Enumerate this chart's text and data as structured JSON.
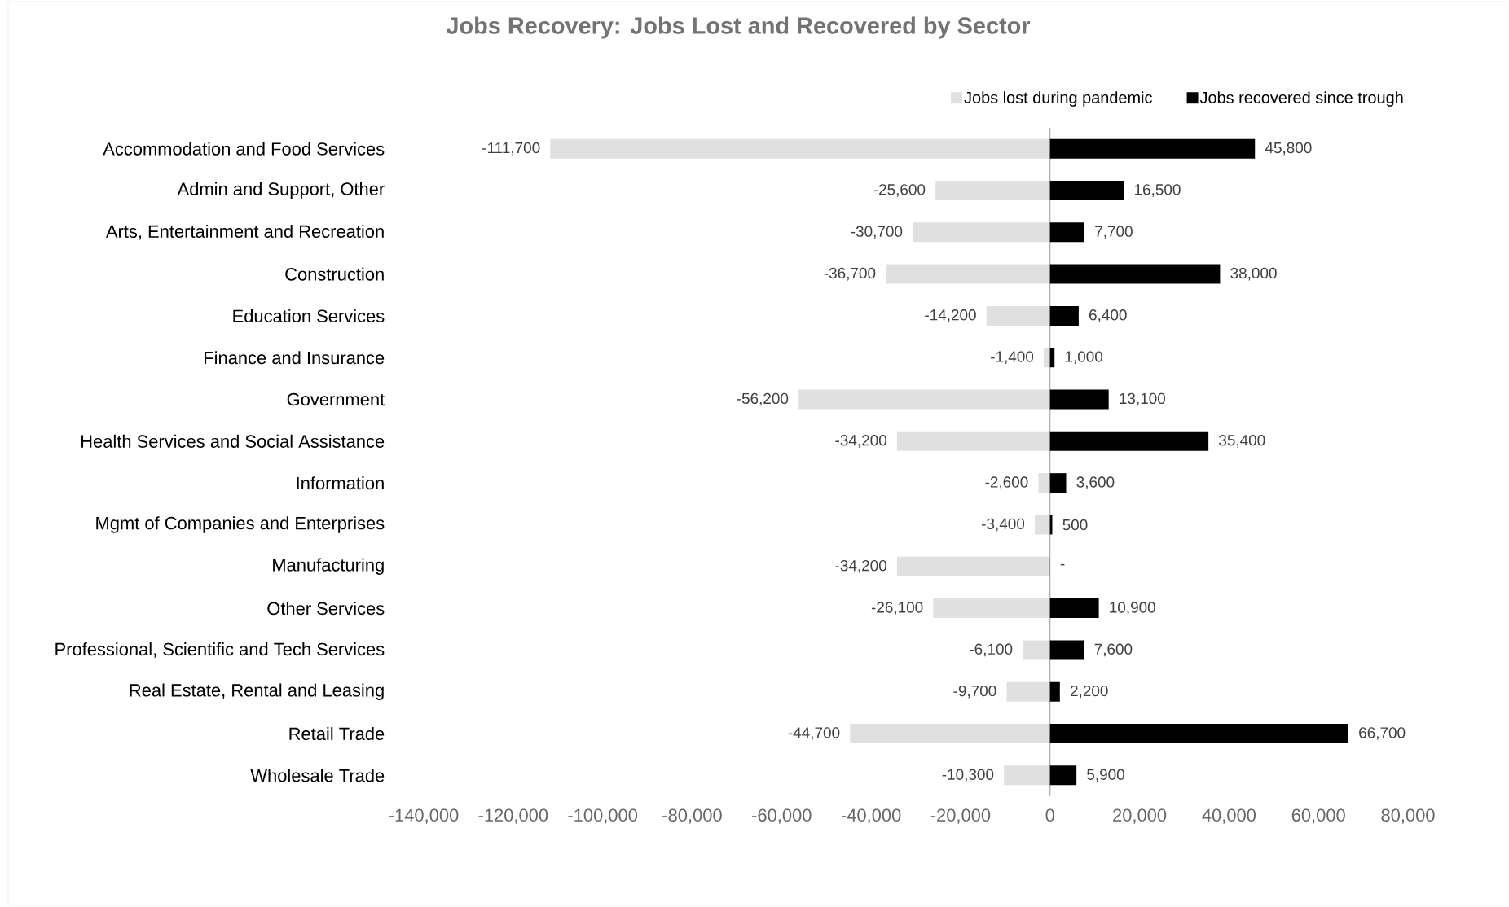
{
  "chart_data": {
    "type": "bar",
    "orientation": "horizontal",
    "stacked": true,
    "title": "Jobs Recovery: Jobs Lost and Recovered by Sector",
    "categories": [
      "Accommodation and Food Services",
      "Admin and Support, Other",
      "Arts, Entertainment and Recreation",
      "Construction",
      "Education Services",
      "Finance and Insurance",
      "Government",
      "Health Services and Social Assistance",
      "Information",
      "Mgmt of Companies and Enterprises",
      "Manufacturing",
      "Other Services",
      "Professional, Scientific and Tech Services",
      "Real Estate, Rental and Leasing",
      "Retail Trade",
      "Wholesale Trade"
    ],
    "series": [
      {
        "name": "Jobs lost during pandemic",
        "color": "#e0e0e0",
        "values": [
          -111700,
          -25600,
          -30700,
          -36700,
          -14200,
          -1400,
          -56200,
          -34200,
          -2600,
          -3400,
          -34200,
          -26100,
          -6100,
          -9700,
          -44700,
          -10300
        ],
        "value_labels": [
          "-111,700",
          "-25,600",
          "-30,700",
          "-36,700",
          "-14,200",
          "-1,400",
          "-56,200",
          "-34,200",
          "-2,600",
          "-3,400",
          "-34,200",
          "-26,100",
          "-6,100",
          "-9,700",
          "-44,700",
          "-10,300"
        ]
      },
      {
        "name": "Jobs recovered since trough",
        "color": "#000000",
        "values": [
          45800,
          16500,
          7700,
          38000,
          6400,
          1000,
          13100,
          35400,
          3600,
          500,
          0,
          10900,
          7600,
          2200,
          66700,
          5900
        ],
        "value_labels": [
          "45,800",
          "16,500",
          "7,700",
          "38,000",
          "6,400",
          "1,000",
          "13,100",
          "35,400",
          "3,600",
          "500",
          "-",
          "10,900",
          "7,600",
          "2,200",
          "66,700",
          "5,900"
        ]
      }
    ],
    "xlim": [
      -140000,
      80000
    ],
    "xticks": [
      {
        "value": -140000,
        "label": "-140,000"
      },
      {
        "value": -120000,
        "label": "-120,000"
      },
      {
        "value": -100000,
        "label": "-100,000"
      },
      {
        "value": -80000,
        "label": "-80,000"
      },
      {
        "value": -60000,
        "label": "-60,000"
      },
      {
        "value": -40000,
        "label": "-40,000"
      },
      {
        "value": -20000,
        "label": "-20,000"
      },
      0,
      {
        "value": 20000,
        "label": "20,000"
      },
      {
        "value": 40000,
        "label": "40,000"
      },
      {
        "value": 60000,
        "label": "60,000"
      },
      {
        "value": 80000,
        "label": "80,000"
      }
    ],
    "legend": "top"
  }
}
